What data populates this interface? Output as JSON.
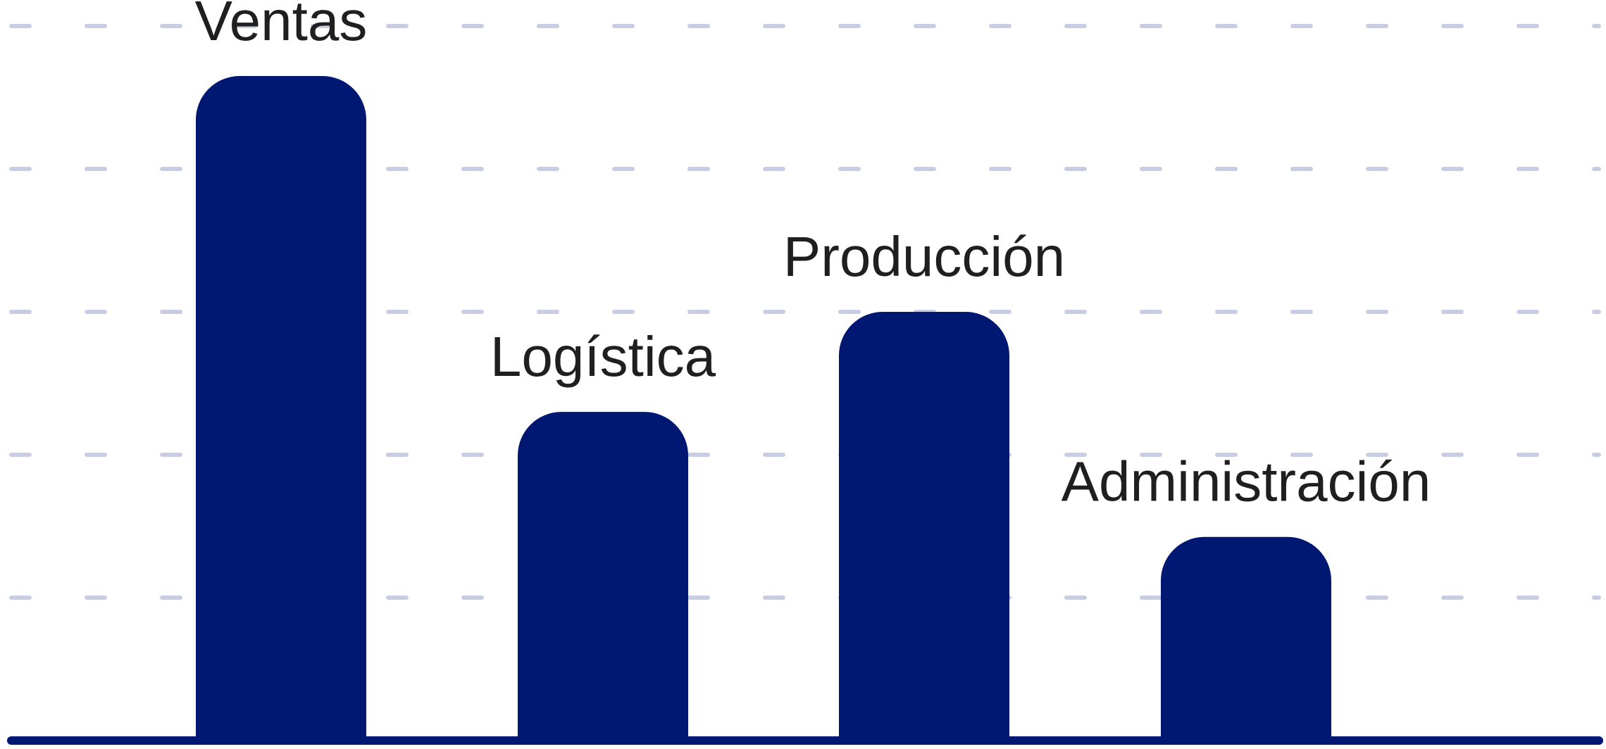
{
  "chart_data": {
    "type": "bar",
    "categories": [
      "Ventas",
      "Logística",
      "Producción",
      "Administración"
    ],
    "values": [
      93,
      46,
      60,
      28.5
    ],
    "title": "",
    "xlabel": "",
    "ylabel": "",
    "ylim": [
      0,
      100
    ],
    "grid": true,
    "legend": "none",
    "colors": {
      "bar": "#001871",
      "grid": "#c9cde3",
      "axis": "#001871",
      "label": "#1f1f1f"
    }
  }
}
